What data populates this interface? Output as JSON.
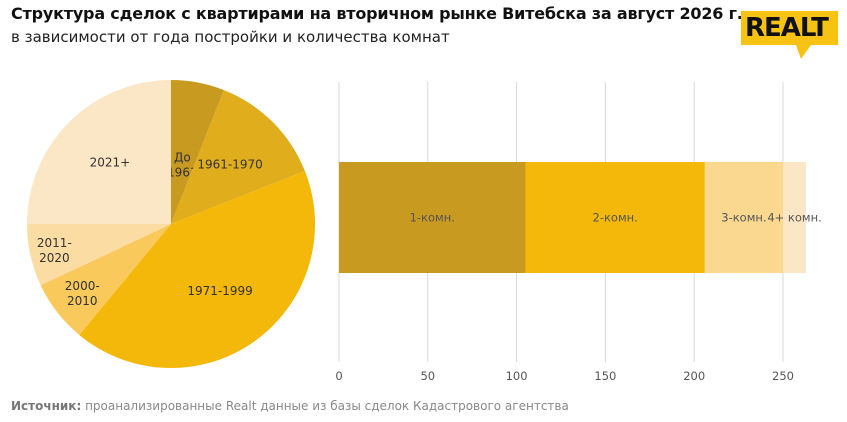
{
  "header": {
    "title": "Структура сделок с квартирами на вторичном рынке Витебска за август 2026 г.",
    "subtitle": "в зависимости от года постройки и количества комнат",
    "logo_text": "REALT"
  },
  "footer": {
    "source_label": "Источник:",
    "source_text": " проанализированные Realt данные из базы сделок Кадастрового агентства"
  },
  "chart_data": [
    {
      "type": "pie",
      "title": "",
      "slices": [
        {
          "label": "До 1961",
          "value": 6,
          "color": "#c99a20"
        },
        {
          "label": "1961-1970",
          "value": 13,
          "color": "#e0ad1c"
        },
        {
          "label": "1971-1999",
          "value": 42,
          "color": "#f4b80a"
        },
        {
          "label": "2000-2010",
          "value": 7,
          "color": "#f9c95c"
        },
        {
          "label": "2011-2020",
          "value": 7,
          "color": "#fbdca2"
        },
        {
          "label": "2021+",
          "value": 25,
          "color": "#fbe6c5"
        }
      ]
    },
    {
      "type": "bar",
      "stacked": true,
      "orientation": "horizontal",
      "title": "",
      "xlabel": "",
      "ylabel": "",
      "xlim": [
        0,
        250
      ],
      "xticks": [
        0,
        50,
        100,
        150,
        200,
        250
      ],
      "grid": true,
      "segments": [
        {
          "label": "1-комн.",
          "value": 105,
          "color": "#c99a20"
        },
        {
          "label": "2-комн.",
          "value": 101,
          "color": "#f4b80a"
        },
        {
          "label": "3-комн.",
          "value": 44,
          "color": "#fbd88f"
        },
        {
          "label": "4+ комн.",
          "value": 13,
          "color": "#fbe6c5"
        }
      ]
    }
  ]
}
